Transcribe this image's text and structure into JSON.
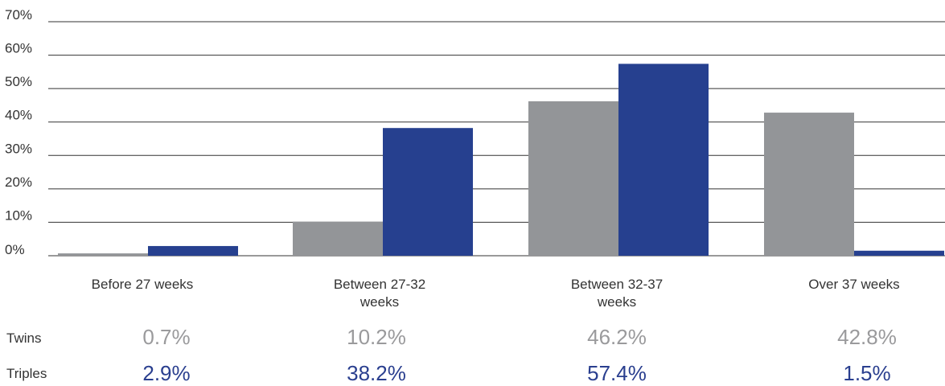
{
  "chart_data": {
    "type": "bar",
    "categories": [
      "Before 27 weeks",
      "Between 27-32 weeks",
      "Between 32-37 weeks",
      "Over 37 weeks"
    ],
    "series": [
      {
        "name": "Twins",
        "values": [
          0.7,
          10.2,
          46.2,
          42.8
        ],
        "color": "#939598"
      },
      {
        "name": "Triples",
        "values": [
          2.9,
          38.2,
          57.4,
          1.5
        ],
        "color": "#26408f"
      }
    ],
    "yticks": [
      "0%",
      "10%",
      "20%",
      "30%",
      "40%",
      "50%",
      "60%",
      "70%"
    ],
    "ylim": [
      0,
      70
    ],
    "grid": true
  },
  "table": {
    "row_labels": {
      "twins": "Twins",
      "triples": "Triples"
    },
    "twins": [
      "0.7%",
      "10.2%",
      "46.2%",
      "42.8%"
    ],
    "triples": [
      "2.9%",
      "38.2%",
      "57.4%",
      "1.5%"
    ]
  },
  "category_labels": [
    "Before 27 weeks",
    "Between 27-32\nweeks",
    "Between 32-37\nweeks",
    "Over 37 weeks"
  ]
}
